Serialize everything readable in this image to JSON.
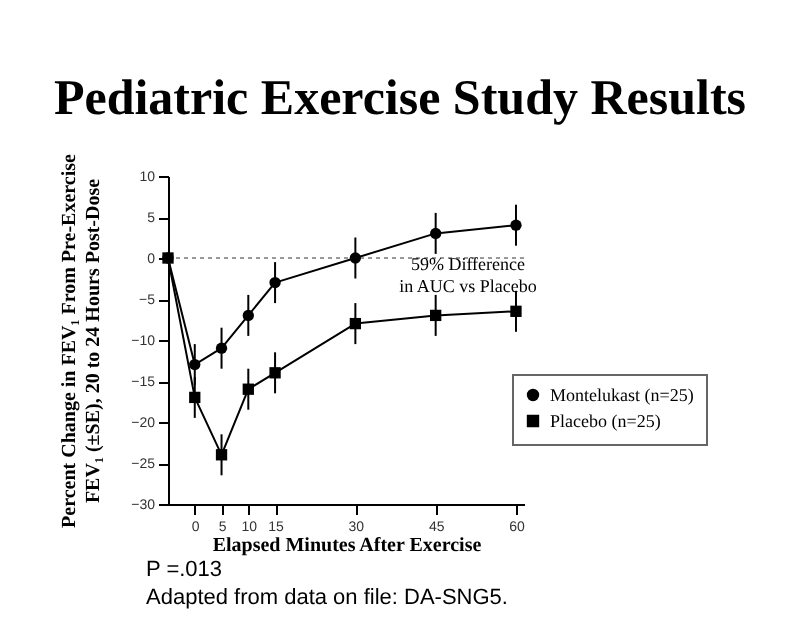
{
  "chart_data": {
    "type": "line",
    "title": "Pediatric Exercise Study Results",
    "xlabel": "Elapsed Minutes After Exercise",
    "ylabel": "Percent Change in FEV₁ From Pre-Exercise FEV₁ (±SE), 20 to 24 Hours Post-Dose",
    "x": [
      -5,
      0,
      5,
      10,
      15,
      30,
      45,
      60
    ],
    "series": [
      {
        "name": "Montelukast (n=25)",
        "color": "#000000",
        "marker": "circle",
        "values": [
          0,
          -13,
          -11,
          -7,
          -3,
          0,
          3,
          4
        ],
        "errors": [
          null,
          2.5,
          2.5,
          2.5,
          2.5,
          2.5,
          2.5,
          2.5
        ]
      },
      {
        "name": "Placebo (n=25)",
        "color": "#000000",
        "marker": "square",
        "values": [
          0,
          -17,
          -24,
          -16,
          -14,
          -8,
          -7,
          -6.5
        ],
        "errors": [
          null,
          2.5,
          2.5,
          2.5,
          2.5,
          2.5,
          2.5,
          2.5
        ]
      }
    ],
    "xlim": [
      -5,
      61.5
    ],
    "xticks": [
      0,
      5,
      10,
      15,
      30,
      45,
      60
    ],
    "ylim": [
      -30,
      10
    ],
    "yticks": [
      -30,
      -25,
      -20,
      -15,
      -10,
      -5,
      0,
      5,
      10
    ],
    "ref_lines": [
      {
        "axis": "y",
        "value": 0,
        "line_style": "dotted",
        "color": "#999999"
      }
    ],
    "grid": false,
    "legend": "right",
    "line_style": "solid",
    "annotations": [
      "59% Difference\nin AUC vs Placebo",
      "P =.013",
      "Adapted from data on file: DA-SNG5."
    ]
  }
}
